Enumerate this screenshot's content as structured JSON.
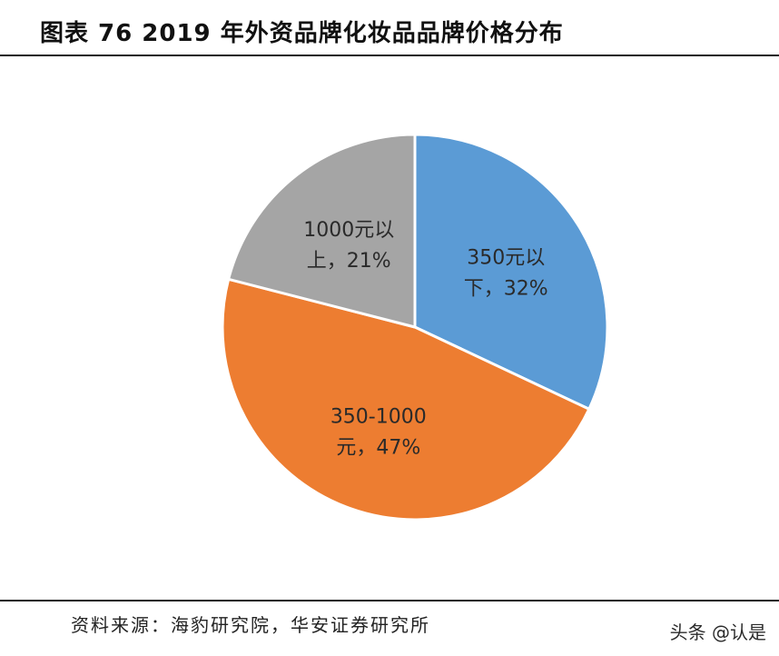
{
  "title": "图表 76 2019 年外资品牌化妆品品牌价格分布",
  "source": "资料来源：海豹研究院，华安证券研究所",
  "watermark": "头条 @认是",
  "chart_data": {
    "type": "pie",
    "title": "图表 76 2019 年外资品牌化妆品品牌价格分布",
    "start_angle_deg": 0,
    "direction": "clockwise",
    "slices": [
      {
        "label_line1": "350元以",
        "label_line2": "下，32%",
        "value": 32,
        "color": "#5b9bd5"
      },
      {
        "label_line1": "350-1000",
        "label_line2": "元，47%",
        "value": 47,
        "color": "#ed7d31"
      },
      {
        "label_line1": "1000元以",
        "label_line2": "上，21%",
        "value": 21,
        "color": "#a5a5a5"
      }
    ]
  }
}
